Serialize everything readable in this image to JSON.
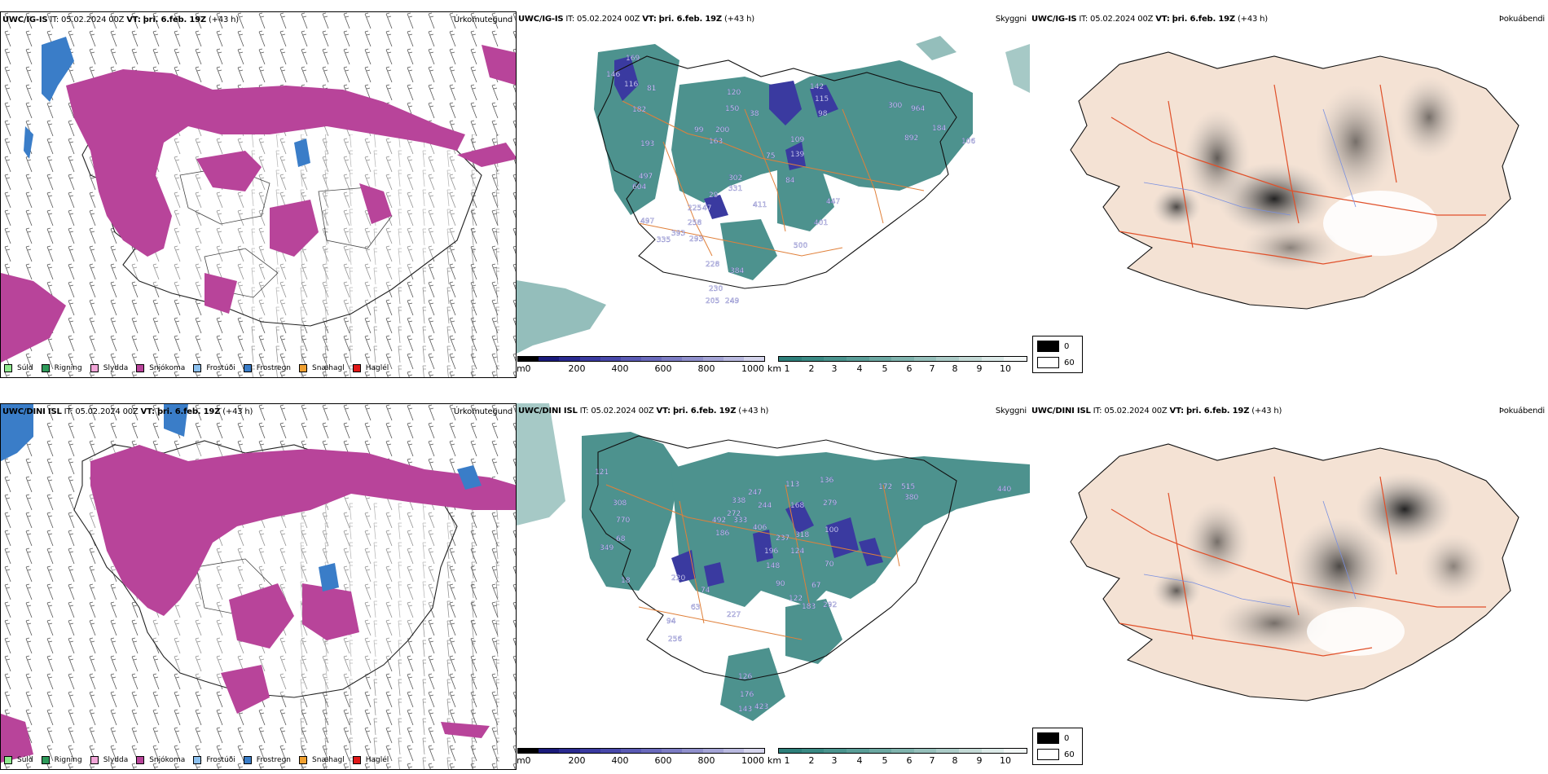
{
  "rows": [
    {
      "model": "UWC/IG-IS",
      "init_label": "IT:",
      "init_time": "05.02.2024 00Z",
      "valid_label": "VT:",
      "valid_time": "þri. 6.feb. 19Z",
      "lead": "(+43 h)",
      "precip_title": "Úrkomutegund",
      "vis_title": "Skyggni",
      "cloud_title": "Þokuábendi",
      "vis_labels": [
        {
          "v": "169"
        },
        {
          "v": "81"
        },
        {
          "v": "146"
        },
        {
          "v": "116"
        },
        {
          "v": "182"
        },
        {
          "v": "193"
        },
        {
          "v": "497"
        },
        {
          "v": "604"
        },
        {
          "v": "497"
        },
        {
          "v": "335"
        },
        {
          "v": "393"
        },
        {
          "v": "258"
        },
        {
          "v": "293"
        },
        {
          "v": "228"
        },
        {
          "v": "230"
        },
        {
          "v": "205"
        },
        {
          "v": "249"
        },
        {
          "v": "384"
        },
        {
          "v": "500"
        },
        {
          "v": "401"
        },
        {
          "v": "447"
        },
        {
          "v": "411"
        },
        {
          "v": "84"
        },
        {
          "v": "331"
        },
        {
          "v": "302"
        },
        {
          "v": "29"
        },
        {
          "v": "47"
        },
        {
          "v": "225"
        },
        {
          "v": "99"
        },
        {
          "v": "200"
        },
        {
          "v": "163"
        },
        {
          "v": "150"
        },
        {
          "v": "120"
        },
        {
          "v": "38"
        },
        {
          "v": "75"
        },
        {
          "v": "109"
        },
        {
          "v": "139"
        },
        {
          "v": "142"
        },
        {
          "v": "115"
        },
        {
          "v": "98"
        },
        {
          "v": "300"
        },
        {
          "v": "964"
        },
        {
          "v": "892"
        },
        {
          "v": "184"
        },
        {
          "v": "106"
        }
      ]
    },
    {
      "model": "UWC/DINI ISL",
      "init_label": "IT:",
      "init_time": "05.02.2024 00Z",
      "valid_label": "VT:",
      "valid_time": "þri. 6.feb. 19Z",
      "lead": "(+43 h)",
      "precip_title": "Úrkomutegund",
      "vis_title": "Skyggni",
      "cloud_title": "Þokuábendi",
      "vis_labels": [
        {
          "v": "121"
        },
        {
          "v": "308"
        },
        {
          "v": "770"
        },
        {
          "v": "68"
        },
        {
          "v": "349"
        },
        {
          "v": "18"
        },
        {
          "v": "220"
        },
        {
          "v": "74"
        },
        {
          "v": "63"
        },
        {
          "v": "94"
        },
        {
          "v": "256"
        },
        {
          "v": "126"
        },
        {
          "v": "176"
        },
        {
          "v": "143"
        },
        {
          "v": "423"
        },
        {
          "v": "227"
        },
        {
          "v": "90"
        },
        {
          "v": "148"
        },
        {
          "v": "196"
        },
        {
          "v": "124"
        },
        {
          "v": "237"
        },
        {
          "v": "186"
        },
        {
          "v": "492"
        },
        {
          "v": "333"
        },
        {
          "v": "406"
        },
        {
          "v": "272"
        },
        {
          "v": "338"
        },
        {
          "v": "247"
        },
        {
          "v": "244"
        },
        {
          "v": "113"
        },
        {
          "v": "168"
        },
        {
          "v": "318"
        },
        {
          "v": "136"
        },
        {
          "v": "279"
        },
        {
          "v": "100"
        },
        {
          "v": "70"
        },
        {
          "v": "67"
        },
        {
          "v": "122"
        },
        {
          "v": "183"
        },
        {
          "v": "292"
        },
        {
          "v": "172"
        },
        {
          "v": "515"
        },
        {
          "v": "380"
        },
        {
          "v": "440"
        }
      ]
    }
  ],
  "precip_legend": [
    {
      "label": "Súld",
      "color": "#8ee88e"
    },
    {
      "label": "Rigning",
      "color": "#2e9a5a"
    },
    {
      "label": "Slydda",
      "color": "#f2a6d8"
    },
    {
      "label": "Snjókoma",
      "color": "#b8449a"
    },
    {
      "label": "Frostúði",
      "color": "#8cc0ee"
    },
    {
      "label": "Frostregn",
      "color": "#3a7dc8"
    },
    {
      "label": "Snæhagl",
      "color": "#f0a030"
    },
    {
      "label": "Haglél",
      "color": "#e01818"
    }
  ],
  "vis_bar_m": {
    "unit": "m",
    "ticks": [
      "0",
      "200",
      "400",
      "600",
      "800",
      "1000"
    ],
    "colors": [
      "#000000",
      "#1a1a7a",
      "#2a2a90",
      "#3a3aa0",
      "#4848aa",
      "#5a5ab4",
      "#6a6abc",
      "#7c7cc4",
      "#9090cc",
      "#a4a4d6",
      "#babae0",
      "#d4d4ec"
    ]
  },
  "vis_bar_km": {
    "unit": "km",
    "ticks": [
      "1",
      "2",
      "3",
      "4",
      "5",
      "6",
      "7",
      "8",
      "9",
      "10"
    ],
    "colors": [
      "#2d7f7a",
      "#3a8a84",
      "#4a948e",
      "#5a9e98",
      "#6ca8a2",
      "#80b4ae",
      "#96c0bb",
      "#acccc8",
      "#c4dad6",
      "#dceae8",
      "#f2f7f6"
    ]
  },
  "cloud_legend": [
    {
      "label": "0",
      "color": "#000000"
    },
    {
      "label": "60",
      "color": "#ffffff"
    }
  ]
}
